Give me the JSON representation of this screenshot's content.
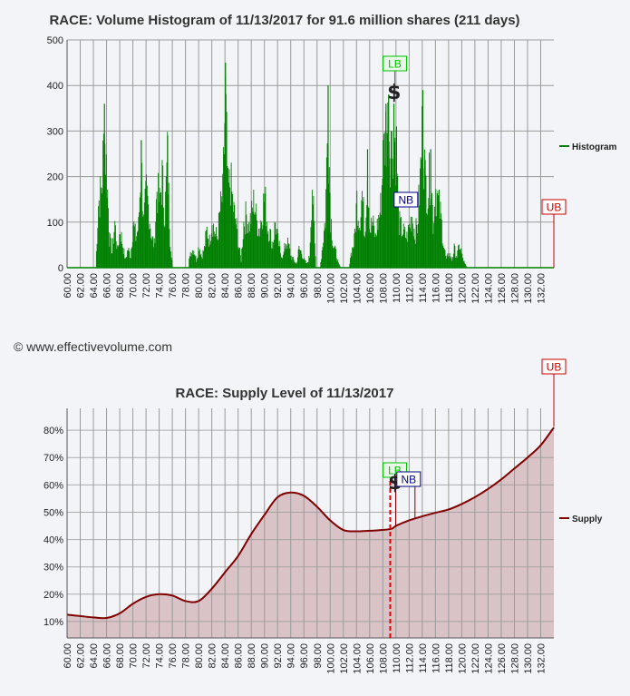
{
  "copyright": "© www.effectivevolume.com",
  "colors": {
    "histogram": "#008000",
    "supply": "#800000",
    "supply_fill": "#d9c3c6",
    "lb": "#00c000",
    "nb": "#000080",
    "ub": "#cc0000",
    "grid": "#9a9a9a"
  },
  "markers": {
    "lb_label": "LB",
    "nb_label": "NB",
    "ub_label": "UB",
    "dollar_label": "$",
    "lb_price": 109.4,
    "nb_price": 112.2,
    "ub_price": 134.0,
    "dollar_price": 110.0
  },
  "chart_data": [
    {
      "type": "bar",
      "title": "RACE: Volume Histogram of 11/13/2017 for 91.6 million shares (211 days)",
      "legend": "Histogram",
      "legend_position": "right",
      "grid": true,
      "xlim": [
        60,
        134
      ],
      "ylim": [
        0,
        500
      ],
      "x_ticks": [
        "60.00",
        "62.00",
        "64.00",
        "66.00",
        "68.00",
        "70.00",
        "72.00",
        "74.00",
        "76.00",
        "78.00",
        "80.00",
        "82.00",
        "84.00",
        "86.00",
        "88.00",
        "90.00",
        "92.00",
        "94.00",
        "96.00",
        "98.00",
        "100.00",
        "102.00",
        "104.00",
        "106.00",
        "108.00",
        "110.00",
        "112.00",
        "114.00",
        "116.00",
        "118.00",
        "120.00",
        "122.00",
        "124.00",
        "126.00",
        "128.00",
        "130.00",
        "132.00"
      ],
      "y_ticks": [
        "0",
        "100",
        "200",
        "300",
        "400",
        "500"
      ],
      "profile": [
        [
          64.3,
          0
        ],
        [
          64.7,
          170
        ],
        [
          65.2,
          210
        ],
        [
          65.6,
          360
        ],
        [
          66.0,
          240
        ],
        [
          66.4,
          80
        ],
        [
          66.8,
          40
        ],
        [
          67.2,
          120
        ],
        [
          67.6,
          45
        ],
        [
          68.0,
          100
        ],
        [
          68.4,
          60
        ],
        [
          68.8,
          20
        ],
        [
          69.2,
          50
        ],
        [
          69.6,
          30
        ],
        [
          70.0,
          120
        ],
        [
          70.4,
          80
        ],
        [
          70.8,
          110
        ],
        [
          71.2,
          280
        ],
        [
          71.6,
          120
        ],
        [
          72.0,
          200
        ],
        [
          72.4,
          150
        ],
        [
          72.8,
          80
        ],
        [
          73.2,
          60
        ],
        [
          73.6,
          210
        ],
        [
          74.0,
          170
        ],
        [
          74.4,
          240
        ],
        [
          74.8,
          140
        ],
        [
          75.2,
          290
        ],
        [
          75.6,
          80
        ],
        [
          76.0,
          0
        ],
        [
          78.4,
          0
        ],
        [
          78.6,
          40
        ],
        [
          79.2,
          50
        ],
        [
          79.6,
          20
        ],
        [
          80.0,
          60
        ],
        [
          80.4,
          30
        ],
        [
          80.8,
          50
        ],
        [
          81.2,
          100
        ],
        [
          81.6,
          70
        ],
        [
          82.0,
          130
        ],
        [
          82.4,
          90
        ],
        [
          82.8,
          80
        ],
        [
          83.2,
          150
        ],
        [
          83.6,
          190
        ],
        [
          84.0,
          450
        ],
        [
          84.4,
          200
        ],
        [
          84.8,
          230
        ],
        [
          85.2,
          160
        ],
        [
          85.6,
          120
        ],
        [
          86.0,
          60
        ],
        [
          86.4,
          20
        ],
        [
          86.8,
          120
        ],
        [
          87.2,
          140
        ],
        [
          87.6,
          110
        ],
        [
          88.0,
          140
        ],
        [
          88.4,
          180
        ],
        [
          88.8,
          120
        ],
        [
          89.2,
          100
        ],
        [
          89.6,
          150
        ],
        [
          90.0,
          190
        ],
        [
          90.4,
          110
        ],
        [
          90.8,
          90
        ],
        [
          91.2,
          60
        ],
        [
          91.6,
          120
        ],
        [
          92.0,
          70
        ],
        [
          92.4,
          40
        ],
        [
          92.8,
          30
        ],
        [
          93.2,
          70
        ],
        [
          93.6,
          60
        ],
        [
          94.0,
          30
        ],
        [
          94.4,
          20
        ],
        [
          94.8,
          10
        ],
        [
          95.2,
          50
        ],
        [
          95.6,
          40
        ],
        [
          96.0,
          20
        ],
        [
          96.4,
          10
        ],
        [
          96.8,
          30
        ],
        [
          97.2,
          230
        ],
        [
          97.6,
          60
        ],
        [
          97.8,
          0
        ],
        [
          98.4,
          0
        ],
        [
          98.6,
          30
        ],
        [
          99.2,
          130
        ],
        [
          99.6,
          400
        ],
        [
          100.0,
          140
        ],
        [
          100.4,
          60
        ],
        [
          100.8,
          40
        ],
        [
          101.2,
          10
        ],
        [
          101.6,
          0
        ],
        [
          102.8,
          0
        ],
        [
          103.0,
          30
        ],
        [
          103.6,
          70
        ],
        [
          104.0,
          180
        ],
        [
          104.4,
          120
        ],
        [
          104.8,
          200
        ],
        [
          105.2,
          90
        ],
        [
          105.6,
          260
        ],
        [
          106.0,
          100
        ],
        [
          106.4,
          120
        ],
        [
          106.8,
          80
        ],
        [
          107.2,
          120
        ],
        [
          107.6,
          160
        ],
        [
          108.0,
          280
        ],
        [
          108.4,
          360
        ],
        [
          108.8,
          380
        ],
        [
          109.2,
          300
        ],
        [
          109.6,
          360
        ],
        [
          110.0,
          310
        ],
        [
          110.4,
          120
        ],
        [
          110.8,
          100
        ],
        [
          111.2,
          90
        ],
        [
          111.6,
          80
        ],
        [
          112.0,
          110
        ],
        [
          112.4,
          140
        ],
        [
          112.8,
          90
        ],
        [
          113.2,
          110
        ],
        [
          113.6,
          230
        ],
        [
          114.0,
          390
        ],
        [
          114.4,
          230
        ],
        [
          114.8,
          200
        ],
        [
          115.2,
          260
        ],
        [
          115.6,
          120
        ],
        [
          116.0,
          210
        ],
        [
          116.4,
          170
        ],
        [
          116.8,
          130
        ],
        [
          117.2,
          60
        ],
        [
          117.6,
          20
        ],
        [
          118.0,
          40
        ],
        [
          118.4,
          20
        ],
        [
          118.8,
          50
        ],
        [
          119.2,
          30
        ],
        [
          119.6,
          60
        ],
        [
          120.0,
          30
        ],
        [
          120.4,
          10
        ],
        [
          120.8,
          0
        ]
      ]
    },
    {
      "type": "area",
      "title": "RACE: Supply Level of 11/13/2017",
      "legend": "Supply",
      "legend_position": "right",
      "grid": true,
      "xlim": [
        60,
        134
      ],
      "ylim": [
        4,
        88
      ],
      "x_ticks": [
        "60.00",
        "62.00",
        "64.00",
        "66.00",
        "68.00",
        "70.00",
        "72.00",
        "74.00",
        "76.00",
        "78.00",
        "80.00",
        "82.00",
        "84.00",
        "86.00",
        "88.00",
        "90.00",
        "92.00",
        "94.00",
        "96.00",
        "98.00",
        "100.00",
        "102.00",
        "104.00",
        "106.00",
        "108.00",
        "110.00",
        "112.00",
        "114.00",
        "116.00",
        "118.00",
        "120.00",
        "122.00",
        "124.00",
        "126.00",
        "128.00",
        "130.00",
        "132.00"
      ],
      "y_ticks": [
        "10%",
        "20%",
        "30%",
        "40%",
        "50%",
        "60%",
        "70%",
        "80%"
      ],
      "x": [
        60,
        62,
        64,
        66,
        68,
        70,
        72,
        74,
        76,
        78,
        80,
        82,
        84,
        86,
        88,
        90,
        92,
        94,
        96,
        98,
        100,
        102,
        104,
        106,
        108,
        109.4,
        110,
        112,
        114,
        116,
        118,
        120,
        122,
        124,
        126,
        128,
        130,
        132,
        134
      ],
      "y": [
        12.5,
        12.0,
        11.5,
        11.3,
        13.0,
        16.5,
        19.0,
        20.0,
        19.5,
        17.5,
        17.5,
        22.0,
        28.0,
        34.0,
        42.0,
        49.0,
        55.5,
        57.2,
        56.0,
        52.0,
        47.0,
        43.5,
        43.0,
        43.2,
        43.5,
        44.0,
        45.0,
        47.0,
        48.5,
        49.8,
        51.0,
        53.0,
        55.5,
        58.5,
        62.0,
        66.0,
        70.0,
        74.5,
        81.0
      ]
    }
  ]
}
